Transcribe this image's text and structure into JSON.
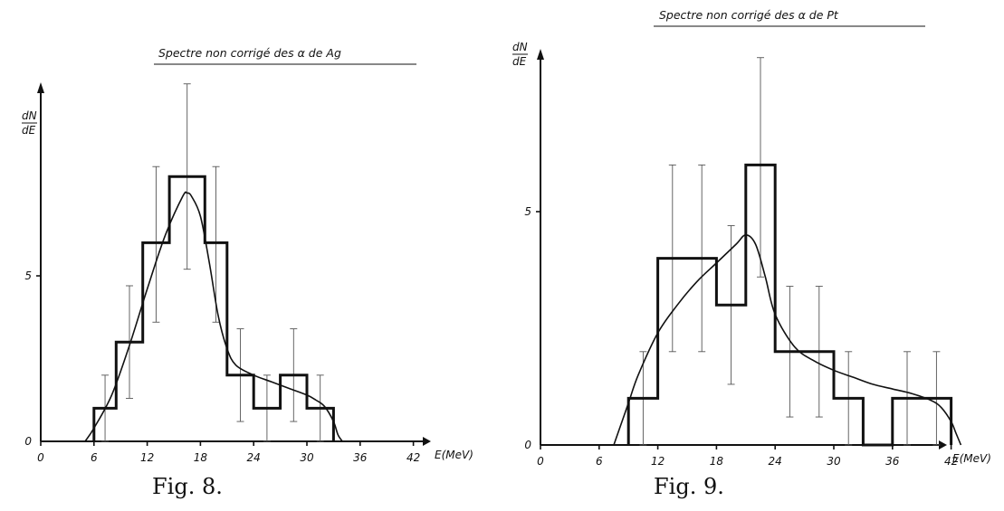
{
  "chart_data": [
    {
      "type": "bar",
      "title": "Spectre non corrigé des α de Ag",
      "ylabel_num": "dN",
      "ylabel_den": "dE",
      "xlabel": "E(MeV)",
      "xlim": [
        0,
        48
      ],
      "ylim": [
        0,
        10
      ],
      "x_ticks": [
        "0",
        "6",
        "12",
        "18",
        "24",
        "30",
        "36",
        "42"
      ],
      "x_tick_values": [
        0,
        6,
        12,
        18,
        24,
        30,
        36,
        42
      ],
      "y_ticks": [
        "0",
        "5"
      ],
      "y_tick_values": [
        0,
        5
      ],
      "bins": [
        {
          "x0": 6,
          "x1": 8.5,
          "y": 1,
          "err_lo": 0.0,
          "err_hi": 2.0
        },
        {
          "x0": 8.5,
          "x1": 11.5,
          "y": 3,
          "err_lo": 1.3,
          "err_hi": 4.7
        },
        {
          "x0": 11.5,
          "x1": 14.5,
          "y": 6,
          "err_lo": 3.6,
          "err_hi": 8.3
        },
        {
          "x0": 14.5,
          "x1": 18.5,
          "y": 8,
          "err_lo": 5.2,
          "err_hi": 10.8
        },
        {
          "x0": 18.5,
          "x1": 21,
          "y": 6,
          "err_lo": 3.6,
          "err_hi": 8.3
        },
        {
          "x0": 21,
          "x1": 24,
          "y": 2,
          "err_lo": 0.6,
          "err_hi": 3.4
        },
        {
          "x0": 24,
          "x1": 27,
          "y": 1,
          "err_lo": 0.0,
          "err_hi": 2.0
        },
        {
          "x0": 27,
          "x1": 30,
          "y": 2,
          "err_lo": 0.6,
          "err_hi": 3.4
        },
        {
          "x0": 30,
          "x1": 33,
          "y": 1,
          "err_lo": 0.0,
          "err_hi": 2.0
        }
      ],
      "curve": {
        "x": [
          5,
          6,
          8,
          10,
          12,
          14,
          16,
          16.5,
          17,
          18,
          19,
          20,
          21,
          22,
          24,
          26,
          28,
          30,
          31,
          32,
          33,
          33.5,
          34
        ],
        "y": [
          0,
          0.4,
          1.4,
          2.9,
          4.6,
          6.2,
          7.4,
          7.5,
          7.4,
          6.8,
          5.4,
          3.8,
          2.8,
          2.3,
          2.0,
          1.8,
          1.6,
          1.4,
          1.25,
          1.05,
          0.6,
          0.2,
          0
        ]
      },
      "caption": "Fig. 8."
    },
    {
      "type": "bar",
      "title": "Spectre non corrigé des α de Pt",
      "ylabel_num": "dN",
      "ylabel_den": "dE",
      "xlabel": "E(MeV)",
      "xlim": [
        0,
        52
      ],
      "ylim": [
        0,
        11.5
      ],
      "x_ticks": [
        "0",
        "6",
        "12",
        "18",
        "24",
        "30",
        "36",
        "42"
      ],
      "x_tick_values": [
        0,
        6,
        12,
        18,
        24,
        30,
        36,
        42
      ],
      "y_ticks": [
        "0",
        "5"
      ],
      "y_tick_values": [
        0,
        5
      ],
      "bins": [
        {
          "x0": 9,
          "x1": 12,
          "y": 1,
          "err_lo": 0.0,
          "err_hi": 2.0
        },
        {
          "x0": 12,
          "x1": 18,
          "y": 4,
          "err_lo": 2.0,
          "err_hi": 6.0
        },
        {
          "x0": 18,
          "x1": 21,
          "y": 3,
          "err_lo": 1.3,
          "err_hi": 4.7
        },
        {
          "x0": 21,
          "x1": 24,
          "y": 6,
          "err_lo": 3.6,
          "err_hi": 8.3
        },
        {
          "x0": 24,
          "x1": 30,
          "y": 2,
          "err_lo": 0.6,
          "err_hi": 3.4
        },
        {
          "x0": 30,
          "x1": 33,
          "y": 1,
          "err_lo": 0.0,
          "err_hi": 2.0
        },
        {
          "x0": 33,
          "x1": 36,
          "y": 0,
          "err_lo": 0.0,
          "err_hi": 0.0
        },
        {
          "x0": 36,
          "x1": 42,
          "y": 1,
          "err_lo": 0.0,
          "err_hi": 2.0
        }
      ],
      "err_x": [
        10.5,
        13.5,
        16.5,
        19.5,
        22.5,
        25.5,
        28.5,
        31.5,
        37.5,
        40.5
      ],
      "err_lo": [
        0.0,
        2.0,
        2.0,
        1.3,
        3.6,
        0.6,
        0.6,
        0.0,
        0.0,
        0.0
      ],
      "err_hi": [
        2.0,
        6.0,
        6.0,
        4.7,
        8.3,
        3.4,
        3.4,
        2.0,
        2.0,
        2.0
      ],
      "curve": {
        "x": [
          7.5,
          8,
          9,
          10,
          12,
          14,
          16,
          18,
          20,
          21,
          22,
          23,
          24,
          26,
          28,
          30,
          32,
          34,
          36,
          38,
          40,
          41,
          42,
          42.5,
          43
        ],
        "y": [
          0,
          0.3,
          0.9,
          1.5,
          2.4,
          3.0,
          3.5,
          3.9,
          4.3,
          4.5,
          4.3,
          3.6,
          2.8,
          2.1,
          1.8,
          1.6,
          1.45,
          1.3,
          1.2,
          1.1,
          0.95,
          0.8,
          0.5,
          0.25,
          0
        ]
      },
      "caption": "Fig. 9."
    }
  ]
}
